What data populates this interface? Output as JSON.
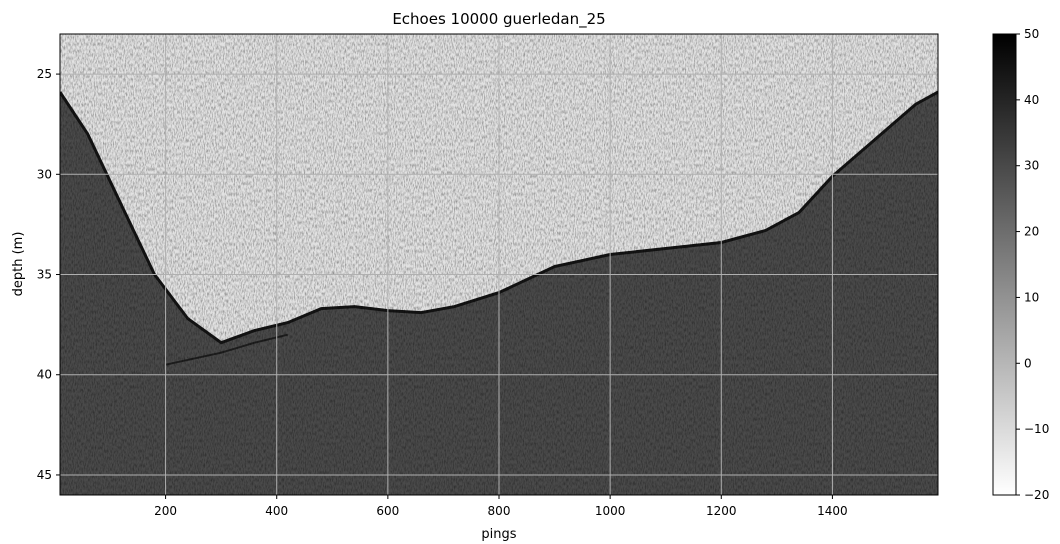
{
  "chart_data": {
    "type": "heatmap",
    "title": "Echoes 10000 guerledan_25",
    "xlabel": "pings",
    "ylabel": "depth (m)",
    "xlim": [
      10,
      1590
    ],
    "ylim": [
      46,
      23
    ],
    "y_inverted": true,
    "x_ticks": [
      200,
      400,
      600,
      800,
      1000,
      1200,
      1400
    ],
    "y_ticks": [
      25,
      30,
      35,
      40,
      45
    ],
    "grid": true,
    "colormap": "gray_r",
    "colorbar": {
      "min": -20,
      "max": 50,
      "ticks": [
        -20,
        -10,
        0,
        10,
        20,
        30,
        40,
        50
      ]
    },
    "bottom_profile": {
      "pings": [
        10,
        60,
        120,
        180,
        240,
        300,
        360,
        420,
        480,
        540,
        600,
        660,
        720,
        800,
        900,
        1000,
        1100,
        1200,
        1280,
        1340,
        1400,
        1450,
        1500,
        1550,
        1590
      ],
      "depth_m": [
        25.9,
        28.0,
        31.5,
        35.0,
        37.2,
        38.4,
        37.8,
        37.4,
        36.7,
        36.6,
        36.8,
        36.9,
        36.6,
        35.9,
        34.6,
        34.0,
        33.7,
        33.4,
        32.8,
        31.9,
        30.1,
        28.9,
        27.7,
        26.5,
        25.9
      ]
    },
    "secondary_echo": {
      "pings": [
        200,
        250,
        300,
        360,
        420
      ],
      "depth_m": [
        39.5,
        39.2,
        38.9,
        38.4,
        38.0
      ]
    },
    "value_ranges": {
      "water_column": [
        -15,
        5
      ],
      "bottom_line": [
        40,
        50
      ],
      "seabed": [
        15,
        35
      ]
    }
  }
}
